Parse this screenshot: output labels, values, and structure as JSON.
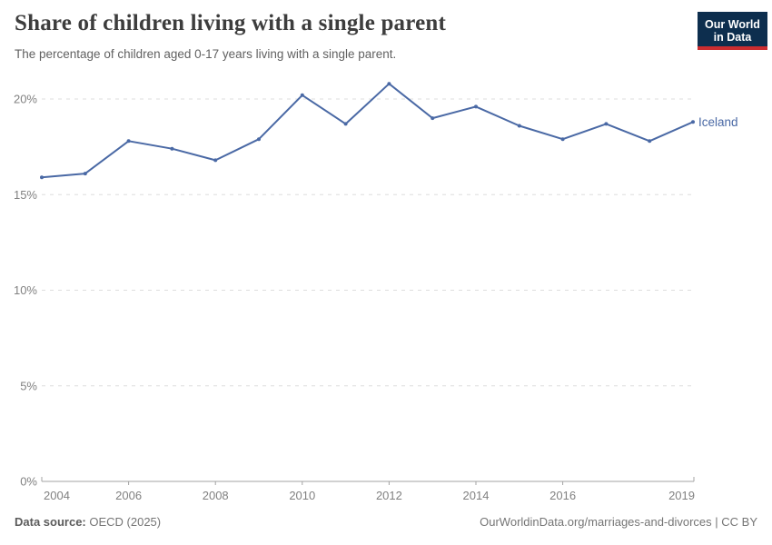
{
  "header": {
    "title": "Share of children living with a single parent",
    "subtitle": "The percentage of children aged 0-17 years living with a single parent.",
    "logo": {
      "line1": "Our World",
      "line2": "in Data"
    }
  },
  "chart_data": {
    "type": "line",
    "title": "Share of children living with a single parent",
    "subtitle": "The percentage of children aged 0-17 years living with a single parent.",
    "x": [
      2004,
      2005,
      2006,
      2007,
      2008,
      2009,
      2010,
      2011,
      2012,
      2013,
      2014,
      2015,
      2016,
      2017,
      2018,
      2019
    ],
    "series": [
      {
        "name": "Iceland",
        "color": "#4a69a5",
        "values": [
          15.9,
          16.1,
          17.8,
          17.4,
          16.8,
          17.9,
          20.2,
          18.7,
          20.8,
          19.0,
          19.6,
          18.6,
          17.9,
          18.7,
          17.8,
          18.8
        ]
      }
    ],
    "x_ticks": [
      2004,
      2006,
      2008,
      2010,
      2012,
      2014,
      2016,
      2019
    ],
    "y_ticks": [
      0,
      5,
      10,
      15,
      20
    ],
    "y_tick_suffix": "%",
    "ylim": [
      0,
      21.5
    ],
    "xlabel": "",
    "ylabel": "",
    "grid": "horizontal-dashed",
    "legend": "line-end-label"
  },
  "footer": {
    "source_label": "Data source:",
    "source_value": " OECD (2025)",
    "credit": "OurWorldinData.org/marriages-and-divorces | CC BY"
  },
  "colors": {
    "line": "#4a69a5",
    "grid": "#dedede",
    "axis": "#a3a3a3",
    "tick_label": "#818181",
    "title": "#3d3d3d",
    "subtitle": "#616161",
    "logo_bg": "#0d2e4e",
    "logo_red": "#cb2d30"
  }
}
